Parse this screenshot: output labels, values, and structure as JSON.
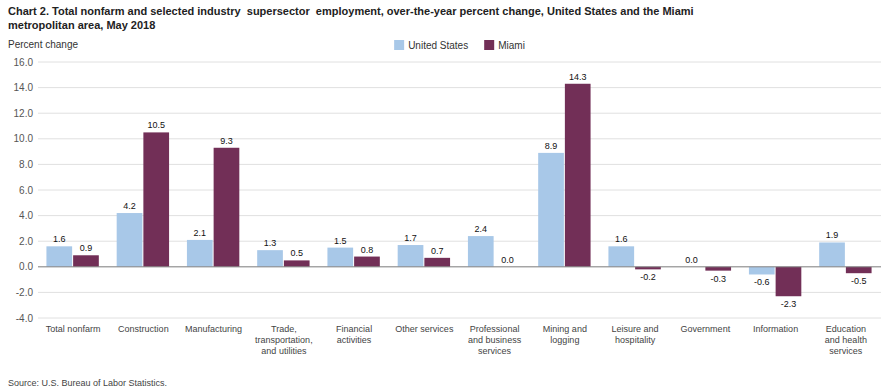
{
  "chart_data": {
    "type": "bar",
    "title": "Chart 2. Total nonfarm and selected industry  supersector  employment, over-the-year percent change, United States and the Miami\nmetropolitan area, May 2018",
    "ylabel": "Percent change",
    "source": "Source: U.S. Bureau of Labor Statistics.",
    "categories": [
      "Total nonfarm",
      "Construction",
      "Manufacturing",
      "Trade,\ntransportation,\nand utilities",
      "Financial\nactivities",
      "Other services",
      "Professional\nand business\nservices",
      "Mining and\nlogging",
      "Leisure and\nhospitality",
      "Government",
      "Information",
      "Education\nand health\nservices"
    ],
    "series": [
      {
        "name": "United States",
        "color": "#a8c8e8",
        "values": [
          1.6,
          4.2,
          2.1,
          1.3,
          1.5,
          1.7,
          2.4,
          8.9,
          1.6,
          0.0,
          -0.6,
          1.9
        ],
        "value_labels": [
          "1.6",
          "4.2",
          "2.1",
          "1.3",
          "1.5",
          "1.7",
          "2.4",
          "8.9",
          "1.6",
          "0.0",
          "-0.6",
          "1.9"
        ]
      },
      {
        "name": "Miami",
        "color": "#722f57",
        "values": [
          0.9,
          10.5,
          9.3,
          0.5,
          0.8,
          0.7,
          0.0,
          14.3,
          -0.2,
          -0.3,
          -2.3,
          -0.5
        ],
        "value_labels": [
          "0.9",
          "10.5",
          "9.3",
          "0.5",
          "0.8",
          "0.7",
          "0.0",
          "14.3",
          "-0.2",
          "-0.3",
          "-2.3",
          "-0.5"
        ]
      }
    ],
    "ylim": [
      -4.0,
      16.0
    ],
    "yticks": [
      {
        "value": -4.0,
        "label": "-4.0"
      },
      {
        "value": -2.0,
        "label": "-2.0"
      },
      {
        "value": 0.0,
        "label": "0.0"
      },
      {
        "value": 2.0,
        "label": "2.0"
      },
      {
        "value": 4.0,
        "label": "4.0"
      },
      {
        "value": 6.0,
        "label": "6.0"
      },
      {
        "value": 8.0,
        "label": "8.0"
      },
      {
        "value": 10.0,
        "label": "10.0"
      },
      {
        "value": 12.0,
        "label": "12.0"
      },
      {
        "value": 14.0,
        "label": "14.0"
      },
      {
        "value": 16.0,
        "label": "16.0"
      }
    ],
    "grid": true,
    "legend": "top",
    "data_labels": true
  }
}
